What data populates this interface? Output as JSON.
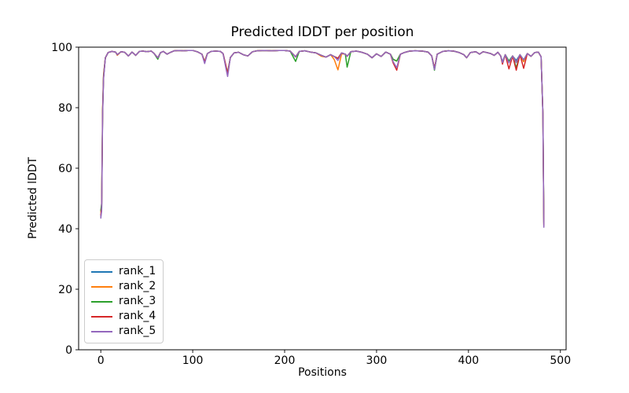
{
  "chart_data": {
    "type": "line",
    "title": "Predicted lDDT per position",
    "xlabel": "Positions",
    "ylabel": "Predicted lDDT",
    "xlim": [
      -24.1,
      506.2
    ],
    "ylim": [
      0,
      100
    ],
    "xticks": [
      0,
      100,
      200,
      300,
      400,
      500
    ],
    "yticks": [
      0,
      20,
      40,
      60,
      80,
      100
    ],
    "grid": false,
    "legend_position": "lower left",
    "x": [
      0,
      1,
      2,
      3,
      5,
      8,
      12,
      16,
      18,
      22,
      26,
      30,
      34,
      38,
      42,
      46,
      50,
      55,
      58,
      62,
      65,
      68,
      72,
      76,
      80,
      85,
      90,
      95,
      100,
      105,
      110,
      113,
      116,
      120,
      125,
      130,
      133,
      136,
      138,
      141,
      145,
      150,
      155,
      160,
      165,
      170,
      178,
      186,
      194,
      200,
      206,
      212,
      216,
      222,
      228,
      234,
      240,
      245,
      250,
      254,
      258,
      262,
      266,
      268,
      272,
      278,
      284,
      290,
      295,
      300,
      305,
      310,
      315,
      318,
      322,
      326,
      330,
      336,
      342,
      350,
      356,
      360,
      363,
      366,
      372,
      378,
      384,
      390,
      395,
      398,
      402,
      408,
      412,
      416,
      420,
      424,
      428,
      432,
      435,
      437,
      440,
      444,
      448,
      452,
      456,
      460,
      464,
      468,
      472,
      476,
      479,
      481,
      482
    ],
    "series": [
      {
        "name": "rank_1",
        "color": "#1f77b4",
        "values": [
          44.0,
          46.5,
          78.0,
          90.0,
          96.5,
          98.2,
          98.6,
          98.4,
          97.5,
          98.5,
          98.3,
          97.1,
          98.4,
          97.3,
          98.6,
          98.7,
          98.5,
          98.7,
          97.9,
          96.5,
          98.2,
          98.6,
          97.7,
          98.3,
          98.8,
          98.9,
          98.8,
          98.9,
          98.9,
          98.5,
          97.7,
          95.2,
          97.9,
          98.6,
          98.7,
          98.6,
          97.9,
          94.0,
          91.5,
          96.6,
          98.1,
          98.3,
          97.5,
          97.1,
          98.5,
          98.8,
          98.9,
          98.8,
          98.9,
          98.9,
          98.7,
          96.8,
          98.6,
          98.8,
          98.4,
          98.1,
          97.3,
          96.7,
          97.5,
          96.9,
          96.3,
          98.1,
          97.7,
          97.0,
          98.5,
          98.7,
          98.3,
          97.7,
          96.5,
          97.8,
          96.9,
          98.4,
          97.7,
          96.0,
          95.4,
          97.7,
          98.2,
          98.7,
          98.8,
          98.7,
          98.4,
          97.1,
          93.0,
          97.7,
          98.6,
          98.8,
          98.7,
          98.2,
          97.5,
          96.5,
          98.2,
          98.5,
          97.7,
          98.5,
          98.2,
          97.9,
          97.3,
          98.3,
          97.1,
          95.2,
          97.5,
          95.4,
          97.1,
          95.6,
          97.5,
          95.8,
          97.9,
          97.0,
          98.2,
          98.4,
          96.8,
          78.0,
          41.5
        ]
      },
      {
        "name": "rank_2",
        "color": "#ff7f0e",
        "values": [
          45.5,
          48.0,
          80.0,
          91.0,
          96.5,
          98.2,
          98.6,
          98.4,
          97.3,
          98.5,
          98.3,
          97.1,
          98.4,
          97.3,
          98.6,
          98.7,
          98.5,
          98.7,
          97.9,
          96.5,
          98.2,
          98.6,
          97.7,
          98.3,
          98.8,
          98.9,
          98.8,
          98.9,
          98.9,
          98.5,
          97.7,
          95.2,
          97.9,
          98.6,
          98.7,
          98.6,
          97.9,
          94.0,
          91.5,
          96.6,
          98.1,
          98.3,
          97.5,
          97.1,
          98.5,
          98.8,
          98.9,
          98.8,
          98.9,
          98.9,
          98.7,
          96.8,
          98.6,
          98.8,
          98.4,
          98.1,
          97.0,
          96.7,
          97.5,
          95.9,
          92.5,
          97.8,
          97.7,
          97.0,
          98.5,
          98.7,
          98.3,
          97.7,
          96.5,
          97.8,
          96.9,
          98.4,
          97.7,
          96.0,
          95.4,
          97.7,
          98.2,
          98.7,
          98.8,
          98.7,
          98.4,
          97.1,
          93.0,
          97.7,
          98.6,
          98.8,
          98.7,
          98.2,
          97.5,
          96.5,
          98.2,
          98.5,
          97.7,
          98.5,
          98.2,
          97.9,
          97.3,
          98.3,
          97.1,
          94.6,
          97.5,
          95.0,
          97.1,
          95.0,
          97.5,
          95.2,
          97.9,
          97.0,
          98.2,
          98.4,
          96.8,
          78.0,
          41.0
        ]
      },
      {
        "name": "rank_3",
        "color": "#2ca02c",
        "values": [
          46.0,
          48.5,
          79.0,
          90.5,
          96.5,
          98.2,
          98.6,
          98.4,
          97.5,
          98.5,
          98.3,
          97.1,
          98.4,
          97.3,
          98.6,
          98.7,
          98.5,
          98.7,
          97.9,
          96.0,
          98.2,
          98.6,
          97.7,
          98.3,
          98.8,
          98.9,
          98.8,
          98.9,
          98.9,
          98.5,
          97.7,
          95.2,
          97.9,
          98.6,
          98.7,
          98.6,
          97.9,
          93.6,
          91.5,
          96.6,
          98.1,
          98.3,
          97.5,
          97.1,
          98.5,
          98.8,
          98.9,
          98.8,
          98.9,
          98.9,
          98.7,
          95.3,
          98.6,
          98.8,
          98.4,
          98.1,
          97.3,
          96.7,
          97.5,
          96.9,
          96.3,
          98.1,
          97.7,
          93.4,
          98.5,
          98.7,
          98.3,
          97.7,
          96.5,
          97.8,
          96.9,
          98.4,
          97.7,
          96.0,
          95.4,
          97.7,
          98.2,
          98.7,
          98.8,
          98.7,
          98.4,
          97.1,
          92.4,
          97.7,
          98.6,
          98.8,
          98.7,
          98.2,
          97.5,
          96.5,
          98.2,
          98.5,
          97.7,
          98.5,
          98.2,
          97.9,
          97.3,
          98.3,
          97.1,
          94.8,
          97.5,
          95.4,
          97.1,
          93.2,
          97.5,
          95.8,
          97.9,
          97.0,
          98.2,
          98.4,
          96.8,
          78.0,
          42.0
        ]
      },
      {
        "name": "rank_4",
        "color": "#d62728",
        "values": [
          44.5,
          47.0,
          78.5,
          90.0,
          96.5,
          98.2,
          98.6,
          98.4,
          97.5,
          98.5,
          98.3,
          97.1,
          98.4,
          97.3,
          98.6,
          98.7,
          98.5,
          98.7,
          97.9,
          96.5,
          98.2,
          98.6,
          97.7,
          98.3,
          98.8,
          98.9,
          98.8,
          98.9,
          98.9,
          98.5,
          97.7,
          95.2,
          97.9,
          98.6,
          98.7,
          98.6,
          97.9,
          94.0,
          91.2,
          96.6,
          98.1,
          98.3,
          97.5,
          97.1,
          98.5,
          98.8,
          98.9,
          98.8,
          98.9,
          98.9,
          98.7,
          96.8,
          98.6,
          98.8,
          98.4,
          98.1,
          97.3,
          96.7,
          97.5,
          96.9,
          96.3,
          98.1,
          97.7,
          97.0,
          98.5,
          98.7,
          98.3,
          97.7,
          96.5,
          97.8,
          96.9,
          98.4,
          97.7,
          94.8,
          92.4,
          97.7,
          98.2,
          98.7,
          98.8,
          98.7,
          98.4,
          97.1,
          93.0,
          97.7,
          98.6,
          98.8,
          98.7,
          98.2,
          97.5,
          96.5,
          98.2,
          98.5,
          97.7,
          98.5,
          98.2,
          97.9,
          97.3,
          98.3,
          97.1,
          94.4,
          97.5,
          92.8,
          97.1,
          92.4,
          97.5,
          93.0,
          97.9,
          97.0,
          98.2,
          98.4,
          96.8,
          78.0,
          41.2
        ]
      },
      {
        "name": "rank_5",
        "color": "#9467bd",
        "values": [
          43.5,
          46.0,
          77.5,
          89.5,
          96.5,
          98.2,
          98.6,
          98.4,
          97.5,
          98.5,
          98.3,
          97.1,
          98.4,
          97.3,
          98.6,
          98.7,
          98.5,
          98.7,
          97.9,
          96.5,
          98.2,
          98.6,
          97.7,
          98.3,
          98.8,
          98.9,
          98.8,
          98.9,
          98.9,
          98.5,
          97.7,
          94.6,
          97.9,
          98.6,
          98.7,
          98.6,
          97.9,
          93.2,
          90.3,
          96.6,
          98.1,
          98.3,
          97.5,
          97.1,
          98.5,
          98.8,
          98.9,
          98.8,
          98.9,
          98.9,
          98.7,
          96.8,
          98.6,
          98.8,
          98.4,
          98.1,
          97.3,
          96.7,
          97.5,
          96.9,
          95.6,
          98.1,
          97.7,
          97.0,
          98.5,
          98.7,
          98.3,
          97.7,
          96.5,
          97.8,
          96.9,
          98.4,
          97.7,
          95.2,
          93.2,
          97.7,
          98.2,
          98.7,
          98.8,
          98.7,
          98.4,
          97.1,
          92.6,
          97.7,
          98.6,
          98.8,
          98.7,
          98.2,
          97.5,
          96.5,
          98.2,
          98.5,
          97.7,
          98.5,
          98.2,
          97.9,
          97.3,
          98.3,
          97.1,
          94.9,
          97.5,
          94.8,
          97.1,
          94.9,
          97.5,
          95.8,
          97.9,
          97.0,
          98.2,
          98.4,
          96.8,
          78.0,
          40.5
        ]
      }
    ]
  }
}
